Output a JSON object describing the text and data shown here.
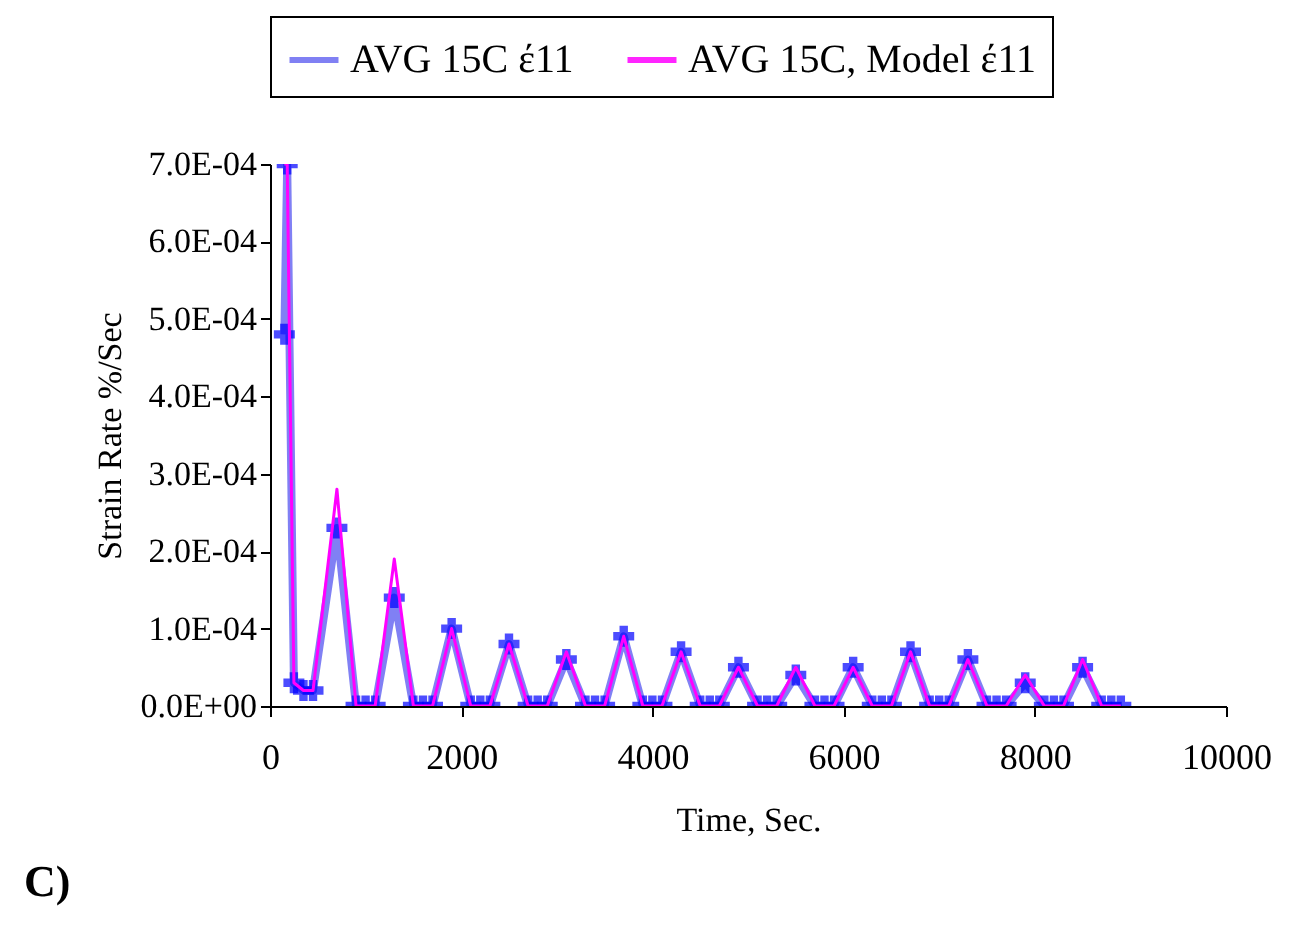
{
  "chart_data": {
    "type": "line",
    "xlabel": "Time, Sec.",
    "ylabel": "Strain Rate %/Sec",
    "annotations": [
      "C)"
    ],
    "x": [
      150,
      180,
      250,
      350,
      450,
      700,
      900,
      1000,
      1100,
      1300,
      1500,
      1600,
      1700,
      1900,
      2100,
      2200,
      2300,
      2500,
      2700,
      2800,
      2900,
      3100,
      3300,
      3400,
      3500,
      3700,
      3900,
      4000,
      4100,
      4300,
      4500,
      4600,
      4700,
      4900,
      5100,
      5200,
      5300,
      5500,
      5700,
      5800,
      5900,
      6100,
      6300,
      6400,
      6500,
      6700,
      6900,
      7000,
      7100,
      7300,
      7500,
      7600,
      7700,
      7900,
      8100,
      8200,
      8300,
      8500,
      8700,
      8800,
      8900
    ],
    "series": [
      {
        "name": "AVG 15C έ11",
        "color": "#6a6af2",
        "marker": "cross",
        "values": [
          0.00048,
          0.0007,
          3e-05,
          2e-05,
          2e-05,
          0.00023,
          0,
          0,
          0,
          0.00014,
          0,
          0,
          0,
          0.0001,
          0,
          0,
          0,
          8e-05,
          0,
          0,
          0,
          6e-05,
          0,
          0,
          0,
          9e-05,
          0,
          0,
          0,
          7e-05,
          0,
          0,
          0,
          5e-05,
          0,
          0,
          0,
          4e-05,
          0,
          0,
          0,
          5e-05,
          0,
          0,
          0,
          7e-05,
          0,
          0,
          0,
          6e-05,
          0,
          0,
          0,
          3e-05,
          0,
          0,
          0,
          5e-05,
          0,
          0,
          0
        ]
      },
      {
        "name": "AVG 15C, Model έ11",
        "color": "#ff00ff",
        "marker": "none",
        "values": [
          0.0007,
          0.0007,
          3e-05,
          2e-05,
          2e-05,
          0.00028,
          0,
          0,
          0,
          0.00019,
          0,
          0,
          0,
          0.0001,
          0,
          0,
          0,
          8e-05,
          0,
          0,
          0,
          7e-05,
          0,
          0,
          0,
          9e-05,
          0,
          0,
          0,
          7e-05,
          0,
          0,
          0,
          5e-05,
          0,
          0,
          0,
          5e-05,
          0,
          0,
          0,
          5e-05,
          0,
          0,
          0,
          7e-05,
          0,
          0,
          0,
          6e-05,
          0,
          0,
          0,
          4e-05,
          0,
          0,
          0,
          6e-05,
          0,
          0,
          0
        ]
      }
    ],
    "xlim": [
      0,
      10000
    ],
    "xticks": [
      0,
      2000,
      4000,
      6000,
      8000,
      10000
    ],
    "ylim": [
      0,
      0.0007
    ],
    "yticks": [
      {
        "value": 0,
        "label": "0.0E+00"
      },
      {
        "value": 0.0001,
        "label": "1.0E-04"
      },
      {
        "value": 0.0002,
        "label": "2.0E-04"
      },
      {
        "value": 0.0003,
        "label": "3.0E-04"
      },
      {
        "value": 0.0004,
        "label": "4.0E-04"
      },
      {
        "value": 0.0005,
        "label": "5.0E-04"
      },
      {
        "value": 0.0006,
        "label": "6.0E-04"
      },
      {
        "value": 0.0007,
        "label": "7.0E-04"
      }
    ],
    "grid": false,
    "legend": "top",
    "line_style": "solid"
  }
}
